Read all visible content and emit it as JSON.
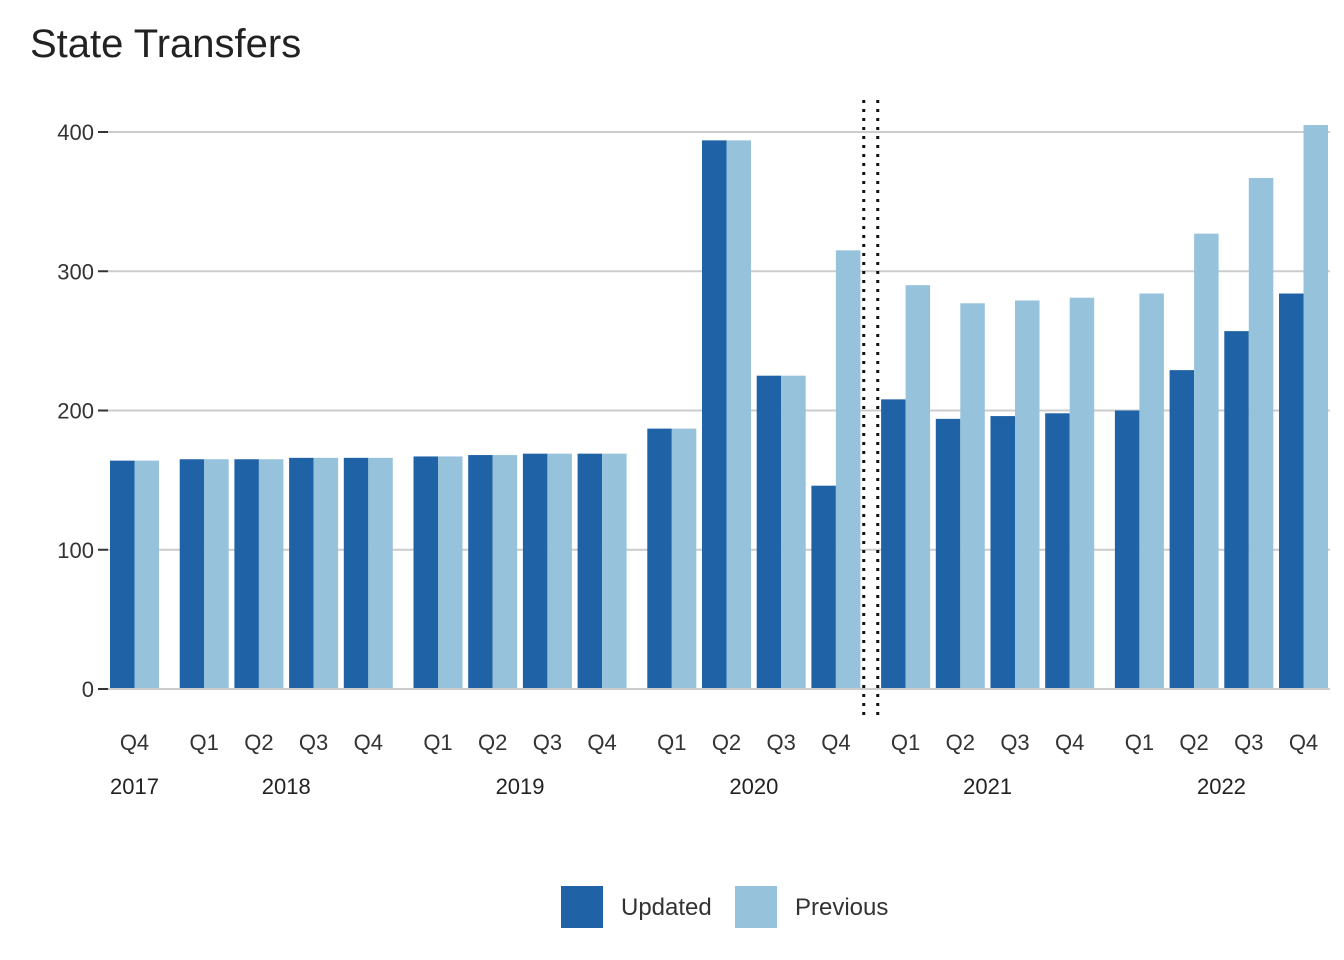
{
  "title": "State Transfers",
  "legend": {
    "updated_label": "Updated",
    "previous_label": "Previous"
  },
  "colors": {
    "updated": "#1f62a6",
    "previous": "#96c2db",
    "grid": "#cccccc",
    "text": "#333333"
  },
  "chart_data": {
    "type": "bar",
    "title": "State Transfers",
    "xlabel": "",
    "ylabel": "",
    "ylim": [
      0,
      420
    ],
    "yticks": [
      0,
      100,
      200,
      300,
      400
    ],
    "grid": true,
    "legend_position": "bottom",
    "groups": [
      {
        "year": "2017",
        "quarters": [
          "Q4"
        ]
      },
      {
        "year": "2018",
        "quarters": [
          "Q1",
          "Q2",
          "Q3",
          "Q4"
        ]
      },
      {
        "year": "2019",
        "quarters": [
          "Q1",
          "Q2",
          "Q3",
          "Q4"
        ]
      },
      {
        "year": "2020",
        "quarters": [
          "Q1",
          "Q2",
          "Q3",
          "Q4"
        ]
      },
      {
        "year": "2021",
        "quarters": [
          "Q1",
          "Q2",
          "Q3",
          "Q4"
        ]
      },
      {
        "year": "2022",
        "quarters": [
          "Q1",
          "Q2",
          "Q3",
          "Q4"
        ]
      }
    ],
    "categories": [
      "2017 Q4",
      "2018 Q1",
      "2018 Q2",
      "2018 Q3",
      "2018 Q4",
      "2019 Q1",
      "2019 Q2",
      "2019 Q3",
      "2019 Q4",
      "2020 Q1",
      "2020 Q2",
      "2020 Q3",
      "2020 Q4",
      "2021 Q1",
      "2021 Q2",
      "2021 Q3",
      "2021 Q4",
      "2022 Q1",
      "2022 Q2",
      "2022 Q3",
      "2022 Q4"
    ],
    "series": [
      {
        "name": "Updated",
        "values": [
          164,
          165,
          165,
          166,
          166,
          167,
          168,
          169,
          169,
          187,
          394,
          225,
          146,
          208,
          194,
          196,
          198,
          200,
          229,
          257,
          284
        ]
      },
      {
        "name": "Previous",
        "values": [
          164,
          165,
          165,
          166,
          166,
          167,
          168,
          169,
          169,
          187,
          394,
          225,
          315,
          290,
          277,
          279,
          281,
          284,
          327,
          367,
          405
        ]
      }
    ],
    "annotations": [
      {
        "type": "vertical-dotted-line",
        "between": [
          "2020 Q4",
          "2021 Q1"
        ]
      }
    ]
  }
}
